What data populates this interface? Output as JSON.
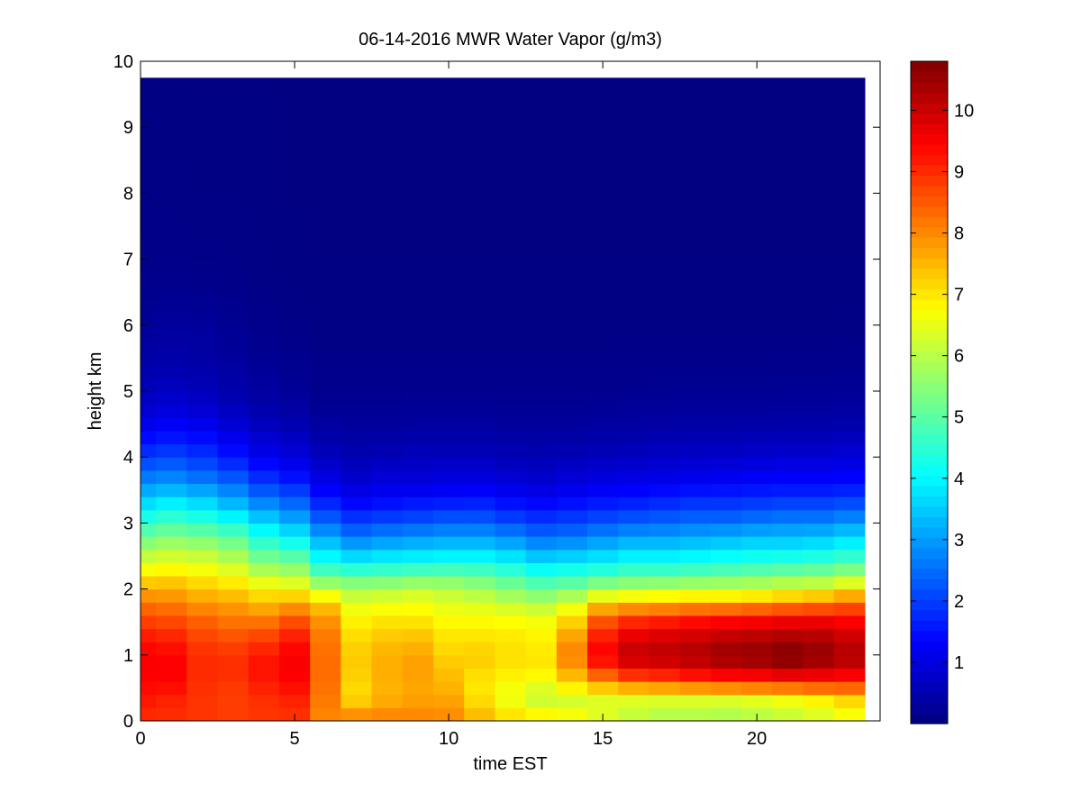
{
  "chart_data": {
    "type": "heatmap",
    "title": "06-14-2016 MWR Water Vapor (g/m3)",
    "xlabel": "time EST",
    "ylabel": "height km",
    "xlim": [
      0,
      24
    ],
    "ylim": [
      0,
      10
    ],
    "xticks": [
      0,
      5,
      10,
      15,
      20
    ],
    "yticks": [
      0,
      1,
      2,
      3,
      4,
      5,
      6,
      7,
      8,
      9,
      10
    ],
    "colormap": "jet",
    "clim": [
      0,
      10.8
    ],
    "colorbar_ticks": [
      1,
      2,
      3,
      4,
      5,
      6,
      7,
      8,
      9,
      10
    ],
    "grid": false,
    "time_hours": [
      0,
      1,
      2,
      3,
      4,
      5,
      6,
      7,
      8,
      9,
      10,
      11,
      12,
      13,
      14,
      15,
      16,
      17,
      18,
      19,
      20,
      21,
      22,
      23
    ],
    "data_extent": {
      "x": [
        0,
        23.5
      ],
      "y": [
        0,
        9.75
      ]
    },
    "profile_anchor_heights_km": [
      0.0,
      0.2,
      0.4,
      0.6,
      0.8,
      1.0,
      1.2,
      1.4,
      1.6,
      1.8,
      2.0,
      2.2,
      2.4,
      2.6,
      2.8,
      3.0,
      3.2,
      3.4,
      3.6,
      3.8,
      4.0,
      4.2,
      4.4,
      4.6,
      4.8,
      5.0,
      5.5,
      6.0,
      6.5,
      7.0,
      8.0,
      9.75
    ],
    "water_vapor_g_m3": [
      [
        9.0,
        9.1,
        9.3,
        9.4,
        9.5,
        9.5,
        9.3,
        9.0,
        8.6,
        8.2,
        7.6,
        7.0,
        6.4,
        5.8,
        5.2,
        4.6,
        4.0,
        3.4,
        2.9,
        2.4,
        2.0,
        1.6,
        1.3,
        1.0,
        0.8,
        0.6,
        0.4,
        0.25,
        0.15,
        0.1,
        0.05,
        0.03
      ],
      [
        9.0,
        9.0,
        9.2,
        9.4,
        9.5,
        9.4,
        9.2,
        8.9,
        8.5,
        8.1,
        7.6,
        7.1,
        6.5,
        6.0,
        5.4,
        4.8,
        4.2,
        3.6,
        3.0,
        2.5,
        2.1,
        1.7,
        1.4,
        1.1,
        0.9,
        0.7,
        0.45,
        0.3,
        0.18,
        0.1,
        0.05,
        0.03
      ],
      [
        8.9,
        8.9,
        8.9,
        9.0,
        9.0,
        9.0,
        8.8,
        8.6,
        8.3,
        7.8,
        7.4,
        6.9,
        6.4,
        5.9,
        5.3,
        4.6,
        4.0,
        3.4,
        2.8,
        2.3,
        1.9,
        1.6,
        1.3,
        1.0,
        0.8,
        0.6,
        0.4,
        0.3,
        0.15,
        0.08,
        0.04,
        0.02
      ],
      [
        8.8,
        8.8,
        8.8,
        8.9,
        9.0,
        8.9,
        8.7,
        8.4,
        8.1,
        7.7,
        7.2,
        6.7,
        6.1,
        5.6,
        5.0,
        4.3,
        3.6,
        3.0,
        2.5,
        2.0,
        1.6,
        1.3,
        1.0,
        0.8,
        0.6,
        0.5,
        0.3,
        0.2,
        0.12,
        0.07,
        0.04,
        0.02
      ],
      [
        8.9,
        8.9,
        9.0,
        9.2,
        9.3,
        9.2,
        8.9,
        8.5,
        8.0,
        7.4,
        6.9,
        6.2,
        5.5,
        4.9,
        4.3,
        3.7,
        3.1,
        2.5,
        2.0,
        1.6,
        1.2,
        0.95,
        0.75,
        0.55,
        0.45,
        0.35,
        0.2,
        0.12,
        0.07,
        0.05,
        0.03,
        0.02
      ],
      [
        8.9,
        9.0,
        9.2,
        9.4,
        9.5,
        9.5,
        9.3,
        8.9,
        8.4,
        7.6,
        6.8,
        6.0,
        5.3,
        4.6,
        3.9,
        3.3,
        2.7,
        2.2,
        1.7,
        1.3,
        1.0,
        0.8,
        0.6,
        0.45,
        0.35,
        0.25,
        0.15,
        0.08,
        0.05,
        0.03,
        0.02,
        0.02
      ],
      [
        8.0,
        8.1,
        8.2,
        8.3,
        8.3,
        8.3,
        8.2,
        8.1,
        7.8,
        7.2,
        6.2,
        5.1,
        4.3,
        3.7,
        3.1,
        2.5,
        2.0,
        1.5,
        1.2,
        0.9,
        0.7,
        0.5,
        0.4,
        0.3,
        0.2,
        0.15,
        0.1,
        0.05,
        0.03,
        0.02,
        0.02,
        0.02
      ],
      [
        8.3,
        7.5,
        7.1,
        7.2,
        7.3,
        7.3,
        7.2,
        7.0,
        6.8,
        6.4,
        5.9,
        5.0,
        4.0,
        3.3,
        2.6,
        2.1,
        1.6,
        1.2,
        0.9,
        0.7,
        0.55,
        0.45,
        0.35,
        0.28,
        0.2,
        0.15,
        0.1,
        0.05,
        0.03,
        0.02,
        0.02,
        0.02
      ],
      [
        8.2,
        7.8,
        7.5,
        7.6,
        7.6,
        7.6,
        7.4,
        7.2,
        6.9,
        6.5,
        6.0,
        5.0,
        4.2,
        3.4,
        2.8,
        2.2,
        1.7,
        1.3,
        1.0,
        0.8,
        0.6,
        0.45,
        0.35,
        0.28,
        0.2,
        0.15,
        0.1,
        0.05,
        0.03,
        0.02,
        0.02,
        0.02
      ],
      [
        8.1,
        7.9,
        7.7,
        7.7,
        7.8,
        7.7,
        7.5,
        7.2,
        6.9,
        6.6,
        6.1,
        5.2,
        4.2,
        3.5,
        2.9,
        2.3,
        1.8,
        1.4,
        1.0,
        0.8,
        0.65,
        0.5,
        0.4,
        0.3,
        0.22,
        0.16,
        0.1,
        0.05,
        0.03,
        0.02,
        0.02,
        0.02
      ],
      [
        8.0,
        7.9,
        7.6,
        7.5,
        7.4,
        7.2,
        7.1,
        6.9,
        6.7,
        6.4,
        6.0,
        5.2,
        4.3,
        3.6,
        3.0,
        2.4,
        1.9,
        1.4,
        1.1,
        0.85,
        0.65,
        0.5,
        0.4,
        0.3,
        0.22,
        0.15,
        0.1,
        0.05,
        0.03,
        0.02,
        0.02,
        0.02
      ],
      [
        7.6,
        7.3,
        7.0,
        7.0,
        7.2,
        7.3,
        7.1,
        6.9,
        6.7,
        6.3,
        5.8,
        5.1,
        4.3,
        3.6,
        3.0,
        2.4,
        1.9,
        1.5,
        1.1,
        0.85,
        0.65,
        0.5,
        0.4,
        0.3,
        0.22,
        0.15,
        0.1,
        0.05,
        0.03,
        0.02,
        0.02,
        0.02
      ],
      [
        7.3,
        6.7,
        6.5,
        6.8,
        7.0,
        7.1,
        7.0,
        6.9,
        6.6,
        6.1,
        5.5,
        4.8,
        4.1,
        3.4,
        2.8,
        2.2,
        1.7,
        1.3,
        1.0,
        0.75,
        0.6,
        0.45,
        0.35,
        0.27,
        0.2,
        0.15,
        0.1,
        0.05,
        0.03,
        0.02,
        0.02,
        0.02
      ],
      [
        7.3,
        6.3,
        6.2,
        6.6,
        7.0,
        7.0,
        6.9,
        6.8,
        6.5,
        5.9,
        5.2,
        4.5,
        3.8,
        3.1,
        2.5,
        2.0,
        1.6,
        1.2,
        0.9,
        0.7,
        0.55,
        0.45,
        0.35,
        0.27,
        0.2,
        0.15,
        0.1,
        0.05,
        0.03,
        0.02,
        0.02,
        0.02
      ],
      [
        7.2,
        6.1,
        6.5,
        7.2,
        7.8,
        8.1,
        7.9,
        7.5,
        7.0,
        6.3,
        5.4,
        4.6,
        3.9,
        3.2,
        2.6,
        2.1,
        1.7,
        1.3,
        1.0,
        0.8,
        0.6,
        0.45,
        0.35,
        0.27,
        0.2,
        0.15,
        0.1,
        0.05,
        0.03,
        0.02,
        0.02,
        0.02
      ],
      [
        6.8,
        6.0,
        6.8,
        7.8,
        9.0,
        9.5,
        9.3,
        8.9,
        8.3,
        7.1,
        5.9,
        4.8,
        4.0,
        3.4,
        2.8,
        2.3,
        1.8,
        1.4,
        1.1,
        0.85,
        0.65,
        0.5,
        0.4,
        0.3,
        0.22,
        0.16,
        0.1,
        0.05,
        0.03,
        0.02,
        0.02,
        0.02
      ],
      [
        6.4,
        5.9,
        6.9,
        8.3,
        9.6,
        10.1,
        9.9,
        9.4,
        8.7,
        7.3,
        6.0,
        5.0,
        4.2,
        3.6,
        3.0,
        2.4,
        1.9,
        1.5,
        1.2,
        0.9,
        0.7,
        0.55,
        0.42,
        0.32,
        0.24,
        0.18,
        0.1,
        0.06,
        0.03,
        0.02,
        0.02,
        0.02
      ],
      [
        6.2,
        5.8,
        6.9,
        8.5,
        9.7,
        10.2,
        10.0,
        9.6,
        8.8,
        7.4,
        6.1,
        5.0,
        4.2,
        3.6,
        3.0,
        2.5,
        2.0,
        1.6,
        1.25,
        0.95,
        0.75,
        0.6,
        0.45,
        0.35,
        0.26,
        0.2,
        0.12,
        0.06,
        0.03,
        0.02,
        0.02,
        0.02
      ],
      [
        6.3,
        5.7,
        7.0,
        8.7,
        9.9,
        10.3,
        10.1,
        9.7,
        9.0,
        7.5,
        6.2,
        5.1,
        4.3,
        3.7,
        3.1,
        2.6,
        2.1,
        1.7,
        1.3,
        1.0,
        0.8,
        0.62,
        0.48,
        0.36,
        0.27,
        0.2,
        0.12,
        0.06,
        0.03,
        0.02,
        0.02,
        0.02
      ],
      [
        6.3,
        5.6,
        7.1,
        8.8,
        10.1,
        10.5,
        10.3,
        9.8,
        9.1,
        7.5,
        6.2,
        5.2,
        4.4,
        3.8,
        3.2,
        2.6,
        2.1,
        1.7,
        1.35,
        1.05,
        0.8,
        0.62,
        0.48,
        0.36,
        0.27,
        0.2,
        0.12,
        0.06,
        0.03,
        0.02,
        0.02,
        0.02
      ],
      [
        6.4,
        5.7,
        7.2,
        8.9,
        10.2,
        10.6,
        10.4,
        9.9,
        9.2,
        7.6,
        6.3,
        5.3,
        4.5,
        3.9,
        3.3,
        2.7,
        2.2,
        1.75,
        1.4,
        1.1,
        0.85,
        0.65,
        0.5,
        0.38,
        0.28,
        0.2,
        0.12,
        0.06,
        0.03,
        0.02,
        0.02,
        0.02
      ],
      [
        6.5,
        5.9,
        7.3,
        9.0,
        10.4,
        10.8,
        10.5,
        10.0,
        9.3,
        7.8,
        6.5,
        5.4,
        4.6,
        3.9,
        3.3,
        2.8,
        2.3,
        1.8,
        1.45,
        1.15,
        0.9,
        0.7,
        0.52,
        0.4,
        0.3,
        0.22,
        0.13,
        0.06,
        0.03,
        0.02,
        0.02,
        0.02
      ],
      [
        6.6,
        6.2,
        7.5,
        9.1,
        10.2,
        10.6,
        10.4,
        10.0,
        9.3,
        8.0,
        6.6,
        5.5,
        4.7,
        4.0,
        3.4,
        2.8,
        2.3,
        1.8,
        1.45,
        1.15,
        0.9,
        0.7,
        0.52,
        0.4,
        0.3,
        0.22,
        0.13,
        0.06,
        0.03,
        0.02,
        0.02,
        0.02
      ],
      [
        6.8,
        6.6,
        7.7,
        9.0,
        10.0,
        10.3,
        10.1,
        9.8,
        9.2,
        8.3,
        7.0,
        5.8,
        4.9,
        4.2,
        3.6,
        3.0,
        2.4,
        1.9,
        1.5,
        1.2,
        0.95,
        0.75,
        0.55,
        0.42,
        0.32,
        0.24,
        0.14,
        0.07,
        0.03,
        0.02,
        0.02,
        0.02
      ]
    ]
  }
}
